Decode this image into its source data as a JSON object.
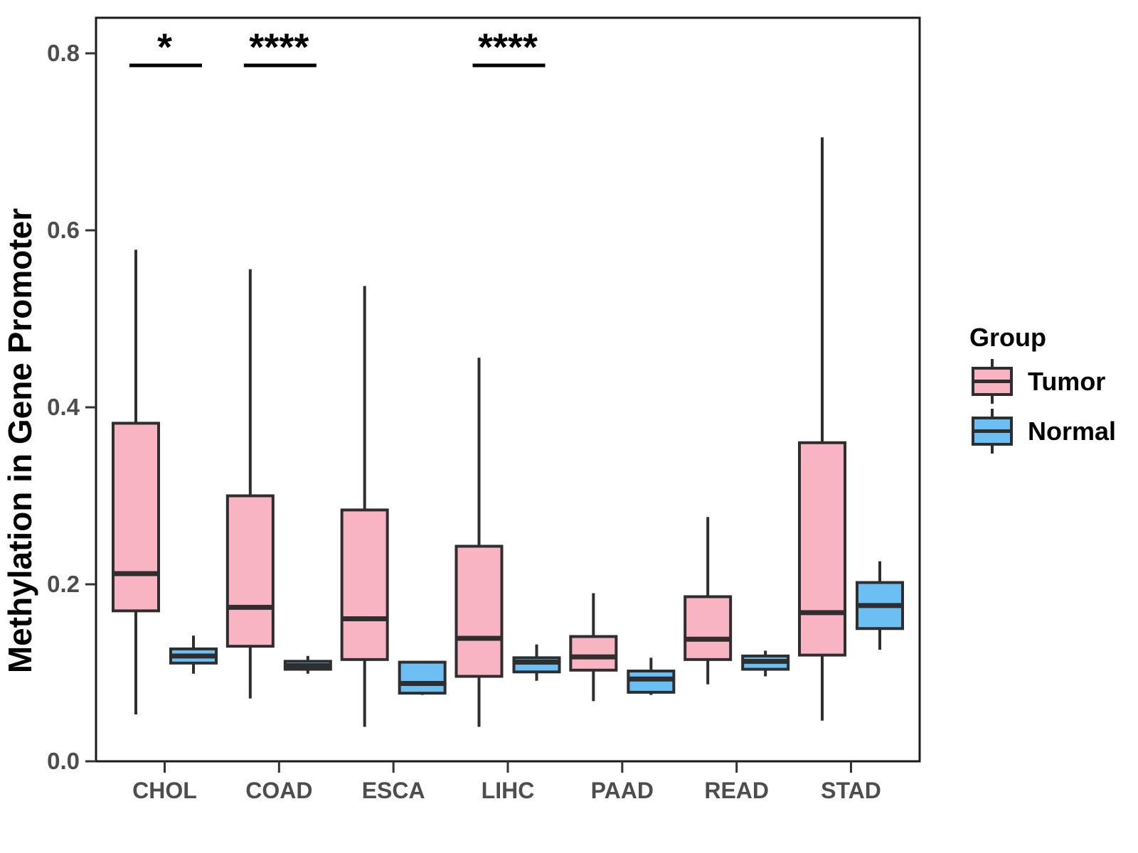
{
  "chart_data": {
    "type": "boxplot",
    "title": "",
    "xlabel": "",
    "ylabel": "Methylation in Gene Promoter",
    "categories": [
      "CHOL",
      "COAD",
      "ESCA",
      "LIHC",
      "PAAD",
      "READ",
      "STAD"
    ],
    "groups": [
      {
        "name": "Tumor",
        "color": "#F9B4C4"
      },
      {
        "name": "Normal",
        "color": "#6CBFF2"
      }
    ],
    "legend": {
      "title": "Group",
      "position": "right"
    },
    "y_axis": {
      "ticks": [
        0.0,
        0.2,
        0.4,
        0.6,
        0.8
      ],
      "tick_labels": [
        "0.0",
        "0.2",
        "0.4",
        "0.6",
        "0.8"
      ],
      "range": [
        0.0,
        0.84
      ],
      "grid": false
    },
    "series": [
      {
        "category": "CHOL",
        "group": "Tumor",
        "whisker_low": 0.053,
        "q1": 0.17,
        "median": 0.212,
        "q3": 0.382,
        "whisker_high": 0.578
      },
      {
        "category": "CHOL",
        "group": "Normal",
        "whisker_low": 0.099,
        "q1": 0.111,
        "median": 0.119,
        "q3": 0.127,
        "whisker_high": 0.142
      },
      {
        "category": "COAD",
        "group": "Tumor",
        "whisker_low": 0.071,
        "q1": 0.13,
        "median": 0.174,
        "q3": 0.3,
        "whisker_high": 0.556
      },
      {
        "category": "COAD",
        "group": "Normal",
        "whisker_low": 0.099,
        "q1": 0.104,
        "median": 0.108,
        "q3": 0.113,
        "whisker_high": 0.119
      },
      {
        "category": "ESCA",
        "group": "Tumor",
        "whisker_low": 0.039,
        "q1": 0.115,
        "median": 0.161,
        "q3": 0.284,
        "whisker_high": 0.537
      },
      {
        "category": "ESCA",
        "group": "Normal",
        "whisker_low": 0.075,
        "q1": 0.077,
        "median": 0.088,
        "q3": 0.112,
        "whisker_high": 0.112
      },
      {
        "category": "LIHC",
        "group": "Tumor",
        "whisker_low": 0.039,
        "q1": 0.096,
        "median": 0.139,
        "q3": 0.243,
        "whisker_high": 0.456
      },
      {
        "category": "LIHC",
        "group": "Normal",
        "whisker_low": 0.091,
        "q1": 0.101,
        "median": 0.112,
        "q3": 0.117,
        "whisker_high": 0.132
      },
      {
        "category": "PAAD",
        "group": "Tumor",
        "whisker_low": 0.068,
        "q1": 0.103,
        "median": 0.118,
        "q3": 0.141,
        "whisker_high": 0.19
      },
      {
        "category": "PAAD",
        "group": "Normal",
        "whisker_low": 0.075,
        "q1": 0.078,
        "median": 0.093,
        "q3": 0.102,
        "whisker_high": 0.117
      },
      {
        "category": "READ",
        "group": "Tumor",
        "whisker_low": 0.087,
        "q1": 0.115,
        "median": 0.138,
        "q3": 0.186,
        "whisker_high": 0.276
      },
      {
        "category": "READ",
        "group": "Normal",
        "whisker_low": 0.096,
        "q1": 0.104,
        "median": 0.113,
        "q3": 0.119,
        "whisker_high": 0.125
      },
      {
        "category": "STAD",
        "group": "Tumor",
        "whisker_low": 0.046,
        "q1": 0.12,
        "median": 0.168,
        "q3": 0.36,
        "whisker_high": 0.705
      },
      {
        "category": "STAD",
        "group": "Normal",
        "whisker_low": 0.126,
        "q1": 0.15,
        "median": 0.176,
        "q3": 0.202,
        "whisker_high": 0.226
      }
    ],
    "significance": [
      {
        "category": "CHOL",
        "label": "*"
      },
      {
        "category": "COAD",
        "label": "****"
      },
      {
        "category": "LIHC",
        "label": "****"
      }
    ],
    "style": {
      "box_border_color": "#2E2E2E",
      "median_color": "#2E2E2E",
      "panel_border_color": "#1A1A1A",
      "axis_tick_color": "#333333",
      "axis_text_color": "#4D4D4D",
      "annotation_color": "#000000",
      "background": "#FFFFFF"
    }
  }
}
